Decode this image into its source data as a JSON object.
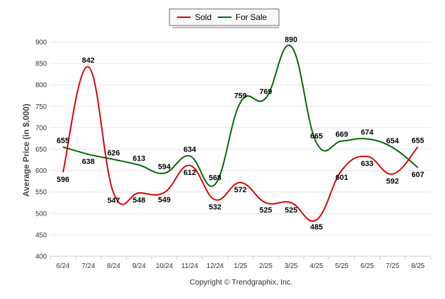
{
  "chart_data": {
    "type": "line",
    "categories": [
      "6/24",
      "7/24",
      "8/24",
      "9/24",
      "10/24",
      "11/24",
      "12/24",
      "1/25",
      "2/25",
      "3/25",
      "4/25",
      "5/25",
      "6/25",
      "7/25",
      "8/25"
    ],
    "series": [
      {
        "name": "Sold",
        "color": "#dd0000",
        "values": [
          596,
          842,
          547,
          548,
          549,
          612,
          532,
          572,
          525,
          525,
          485,
          601,
          633,
          592,
          655
        ]
      },
      {
        "name": "For Sale",
        "color": "#006600",
        "values": [
          655,
          638,
          626,
          613,
          594,
          634,
          568,
          759,
          769,
          890,
          665,
          669,
          674,
          654,
          607
        ]
      }
    ],
    "ylabel": "Average Price (in $,000)",
    "ylim": [
      400,
      900
    ],
    "yticks": [
      400,
      450,
      500,
      550,
      600,
      650,
      700,
      750,
      800,
      850,
      900
    ],
    "grid": true,
    "legend": "top-center",
    "footer": "Copyright © Trendgraphix, Inc."
  }
}
